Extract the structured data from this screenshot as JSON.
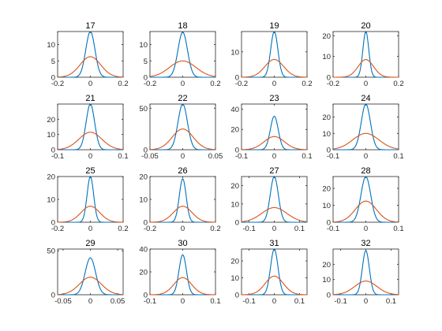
{
  "colors": {
    "background": "#ffffff",
    "axes": "#262626",
    "series1": "#0072BD",
    "series2": "#D95319"
  },
  "chart_data": [
    {
      "type": "line",
      "title": "17",
      "xlim": [
        -0.2,
        0.2
      ],
      "ylim": [
        0,
        14
      ],
      "xticks": [
        -0.2,
        0,
        0.2
      ],
      "xtick_labels": [
        "-0.2",
        "0",
        "0.2"
      ],
      "yticks": [
        0,
        5,
        10
      ],
      "ytick_labels": [
        "0",
        "5",
        "10"
      ],
      "series": [
        {
          "color": "#0072BD",
          "peak": 14.0,
          "mean": 0,
          "sigma": 0.028
        },
        {
          "color": "#D95319",
          "peak": 6.3,
          "mean": 0,
          "sigma": 0.063
        }
      ]
    },
    {
      "type": "line",
      "title": "18",
      "xlim": [
        -0.2,
        0.2
      ],
      "ylim": [
        0,
        14
      ],
      "xticks": [
        -0.2,
        0,
        0.2
      ],
      "xtick_labels": [
        "-0.2",
        "0",
        "0.2"
      ],
      "yticks": [
        0,
        5,
        10
      ],
      "ytick_labels": [
        "0",
        "5",
        "10"
      ],
      "series": [
        {
          "color": "#0072BD",
          "peak": 13.8,
          "mean": 0,
          "sigma": 0.029
        },
        {
          "color": "#D95319",
          "peak": 5.0,
          "mean": 0,
          "sigma": 0.08
        }
      ]
    },
    {
      "type": "line",
      "title": "19",
      "xlim": [
        -0.2,
        0.2
      ],
      "ylim": [
        0,
        18
      ],
      "xticks": [
        -0.2,
        0,
        0.2
      ],
      "xtick_labels": [
        "-0.2",
        "0",
        "0.2"
      ],
      "yticks": [
        0,
        10
      ],
      "ytick_labels": [
        "0",
        "10"
      ],
      "series": [
        {
          "color": "#0072BD",
          "peak": 18.0,
          "mean": 0,
          "sigma": 0.022
        },
        {
          "color": "#D95319",
          "peak": 7.0,
          "mean": 0,
          "sigma": 0.057
        }
      ]
    },
    {
      "type": "line",
      "title": "20",
      "xlim": [
        -0.2,
        0.2
      ],
      "ylim": [
        0,
        22
      ],
      "xticks": [
        -0.2,
        0,
        0.2
      ],
      "xtick_labels": [
        "-0.2",
        "0",
        "0.2"
      ],
      "yticks": [
        0,
        10,
        20
      ],
      "ytick_labels": [
        "0",
        "10",
        "20"
      ],
      "series": [
        {
          "color": "#0072BD",
          "peak": 22.0,
          "mean": 0,
          "sigma": 0.018
        },
        {
          "color": "#D95319",
          "peak": 8.5,
          "mean": 0,
          "sigma": 0.047
        }
      ]
    },
    {
      "type": "line",
      "title": "21",
      "xlim": [
        -0.1,
        0.1
      ],
      "ylim": [
        0,
        30
      ],
      "xticks": [
        -0.1,
        0,
        0.1
      ],
      "xtick_labels": [
        "-0.1",
        "0",
        "0.1"
      ],
      "yticks": [
        0,
        10,
        20
      ],
      "ytick_labels": [
        "0",
        "10",
        "20"
      ],
      "series": [
        {
          "color": "#0072BD",
          "peak": 30.0,
          "mean": 0,
          "sigma": 0.013
        },
        {
          "color": "#D95319",
          "peak": 11.5,
          "mean": 0,
          "sigma": 0.035
        }
      ]
    },
    {
      "type": "line",
      "title": "22",
      "xlim": [
        -0.05,
        0.05
      ],
      "ylim": [
        0,
        55
      ],
      "xticks": [
        -0.05,
        0,
        0.05
      ],
      "xtick_labels": [
        "-0.05",
        "0",
        "0.05"
      ],
      "yticks": [
        0,
        50
      ],
      "ytick_labels": [
        "0",
        "50"
      ],
      "series": [
        {
          "color": "#0072BD",
          "peak": 55.0,
          "mean": 0,
          "sigma": 0.0072
        },
        {
          "color": "#D95319",
          "peak": 25.0,
          "mean": 0,
          "sigma": 0.016
        }
      ]
    },
    {
      "type": "line",
      "title": "23",
      "xlim": [
        -0.1,
        0.1
      ],
      "ylim": [
        0,
        45
      ],
      "xticks": [
        -0.1,
        0,
        0.1
      ],
      "xtick_labels": [
        "-0.1",
        "0",
        "0.1"
      ],
      "yticks": [
        0,
        20,
        40
      ],
      "ytick_labels": [
        "0",
        "20",
        "40"
      ],
      "series": [
        {
          "color": "#0072BD",
          "peak": 33.0,
          "mean": 0,
          "sigma": 0.012
        },
        {
          "color": "#D95319",
          "peak": 13.0,
          "mean": 0,
          "sigma": 0.031
        }
      ]
    },
    {
      "type": "line",
      "title": "24",
      "xlim": [
        -0.1,
        0.1
      ],
      "ylim": [
        0,
        28
      ],
      "xticks": [
        -0.1,
        0,
        0.1
      ],
      "xtick_labels": [
        "-0.1",
        "0",
        "0.1"
      ],
      "yticks": [
        0,
        10,
        20
      ],
      "ytick_labels": [
        "0",
        "10",
        "20"
      ],
      "series": [
        {
          "color": "#0072BD",
          "peak": 28.0,
          "mean": 0,
          "sigma": 0.014
        },
        {
          "color": "#D95319",
          "peak": 10.0,
          "mean": 0,
          "sigma": 0.04
        }
      ]
    },
    {
      "type": "line",
      "title": "25",
      "xlim": [
        -0.2,
        0.2
      ],
      "ylim": [
        0,
        20
      ],
      "xticks": [
        -0.2,
        0,
        0.2
      ],
      "xtick_labels": [
        "-0.2",
        "0",
        "0.2"
      ],
      "yticks": [
        0,
        10,
        20
      ],
      "ytick_labels": [
        "0",
        "10",
        "20"
      ],
      "series": [
        {
          "color": "#0072BD",
          "peak": 20.0,
          "mean": 0,
          "sigma": 0.02
        },
        {
          "color": "#D95319",
          "peak": 7.0,
          "mean": 0,
          "sigma": 0.057
        }
      ]
    },
    {
      "type": "line",
      "title": "26",
      "xlim": [
        -0.2,
        0.2
      ],
      "ylim": [
        0,
        20
      ],
      "xticks": [
        -0.2,
        0,
        0.2
      ],
      "xtick_labels": [
        "-0.2",
        "0",
        "0.2"
      ],
      "yticks": [
        0,
        10,
        20
      ],
      "ytick_labels": [
        "0",
        "10",
        "20"
      ],
      "series": [
        {
          "color": "#0072BD",
          "peak": 19.0,
          "mean": 0,
          "sigma": 0.021
        },
        {
          "color": "#D95319",
          "peak": 7.0,
          "mean": 0,
          "sigma": 0.057
        }
      ]
    },
    {
      "type": "line",
      "title": "27",
      "xlim": [
        -0.13,
        0.13
      ],
      "ylim": [
        0,
        25
      ],
      "xticks": [
        -0.1,
        0,
        0.1
      ],
      "xtick_labels": [
        "-0.1",
        "0",
        "0.1"
      ],
      "yticks": [
        0,
        10,
        20
      ],
      "ytick_labels": [
        "0",
        "10",
        "20"
      ],
      "series": [
        {
          "color": "#0072BD",
          "peak": 25.0,
          "mean": 0,
          "sigma": 0.016
        },
        {
          "color": "#D95319",
          "peak": 8.0,
          "mean": 0,
          "sigma": 0.05
        }
      ]
    },
    {
      "type": "line",
      "title": "28",
      "xlim": [
        -0.1,
        0.1
      ],
      "ylim": [
        0,
        27
      ],
      "xticks": [
        -0.1,
        0,
        0.1
      ],
      "xtick_labels": [
        "-0.1",
        "0",
        "0.1"
      ],
      "yticks": [
        0,
        10,
        20
      ],
      "ytick_labels": [
        "0",
        "10",
        "20"
      ],
      "series": [
        {
          "color": "#0072BD",
          "peak": 27.0,
          "mean": 0,
          "sigma": 0.0148
        },
        {
          "color": "#D95319",
          "peak": 12.5,
          "mean": 0,
          "sigma": 0.032
        }
      ]
    },
    {
      "type": "line",
      "title": "29",
      "xlim": [
        -0.06,
        0.06
      ],
      "ylim": [
        0,
        52
      ],
      "xticks": [
        -0.05,
        0,
        0.05
      ],
      "xtick_labels": [
        "-0.05",
        "0",
        "0.05"
      ],
      "yticks": [
        0,
        50
      ],
      "ytick_labels": [
        "0",
        "50"
      ],
      "series": [
        {
          "color": "#0072BD",
          "peak": 42.0,
          "mean": 0,
          "sigma": 0.0095
        },
        {
          "color": "#D95319",
          "peak": 20.0,
          "mean": 0,
          "sigma": 0.02
        }
      ]
    },
    {
      "type": "line",
      "title": "30",
      "xlim": [
        -0.1,
        0.1
      ],
      "ylim": [
        0,
        40
      ],
      "xticks": [
        -0.1,
        0,
        0.1
      ],
      "xtick_labels": [
        "-0.1",
        "0",
        "0.1"
      ],
      "yticks": [
        0,
        20,
        40
      ],
      "ytick_labels": [
        "0",
        "20",
        "40"
      ],
      "series": [
        {
          "color": "#0072BD",
          "peak": 35.0,
          "mean": 0,
          "sigma": 0.0114
        },
        {
          "color": "#D95319",
          "peak": 15.0,
          "mean": 0,
          "sigma": 0.027
        }
      ]
    },
    {
      "type": "line",
      "title": "31",
      "xlim": [
        -0.13,
        0.13
      ],
      "ylim": [
        0,
        27
      ],
      "xticks": [
        -0.1,
        0,
        0.1
      ],
      "xtick_labels": [
        "-0.1",
        "0",
        "0.1"
      ],
      "yticks": [
        0,
        10,
        20
      ],
      "ytick_labels": [
        "0",
        "10",
        "20"
      ],
      "series": [
        {
          "color": "#0072BD",
          "peak": 27.0,
          "mean": 0,
          "sigma": 0.0148
        },
        {
          "color": "#D95319",
          "peak": 11.0,
          "mean": 0,
          "sigma": 0.036
        }
      ]
    },
    {
      "type": "line",
      "title": "32",
      "xlim": [
        -0.13,
        0.13
      ],
      "ylim": [
        0,
        30
      ],
      "xticks": [
        -0.1,
        0,
        0.1
      ],
      "xtick_labels": [
        "-0.1",
        "0",
        "0.1"
      ],
      "yticks": [
        0,
        10,
        20
      ],
      "ytick_labels": [
        "0",
        "10",
        "20"
      ],
      "series": [
        {
          "color": "#0072BD",
          "peak": 29.0,
          "mean": 0,
          "sigma": 0.0138
        },
        {
          "color": "#D95319",
          "peak": 9.0,
          "mean": 0,
          "sigma": 0.044
        }
      ]
    }
  ]
}
